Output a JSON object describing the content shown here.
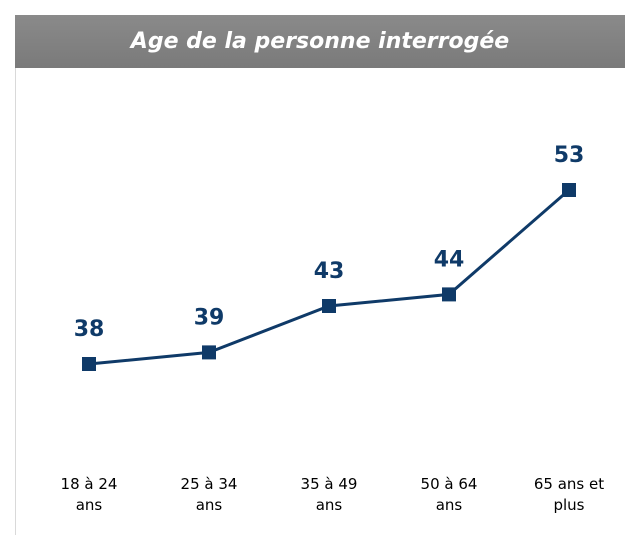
{
  "chart_data": {
    "type": "line",
    "title": "Age de la personne interrogée",
    "categories": [
      "18 à 24 ans",
      "25 à 34 ans",
      "35 à 49 ans",
      "50 à 64 ans",
      "65 ans et plus"
    ],
    "values": [
      38,
      39,
      43,
      44,
      53
    ],
    "color": "#0f3a68"
  }
}
